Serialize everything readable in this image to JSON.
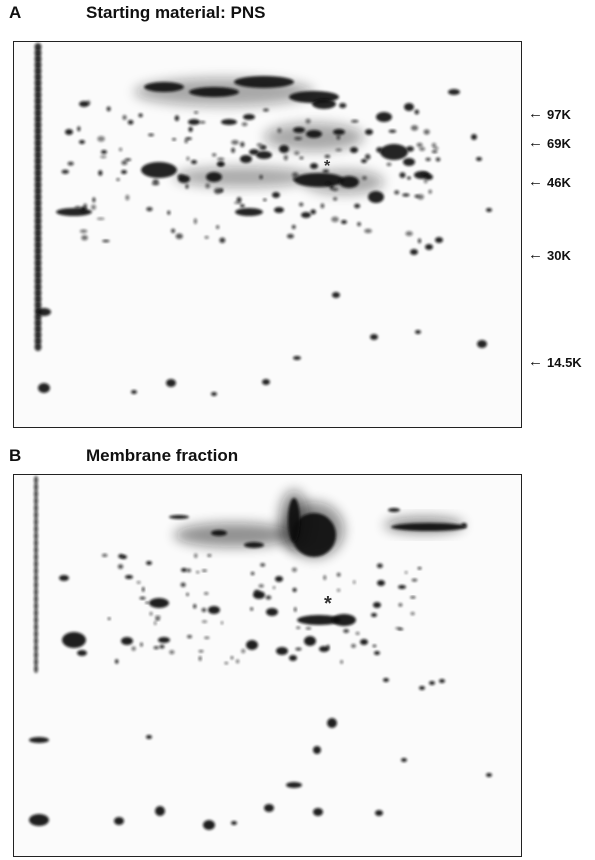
{
  "panel_a": {
    "letter": "A",
    "title": "Starting material: PNS",
    "markers": [
      {
        "label": "97K",
        "arrow": "←"
      },
      {
        "label": "69K",
        "arrow": "←"
      },
      {
        "label": "46K",
        "arrow": "←"
      },
      {
        "label": "30K",
        "arrow": "←"
      },
      {
        "label": "14.5K",
        "arrow": "←"
      }
    ],
    "asterisk": "*"
  },
  "panel_b": {
    "letter": "B",
    "title": "Membrane fraction",
    "asterisk": "*"
  }
}
